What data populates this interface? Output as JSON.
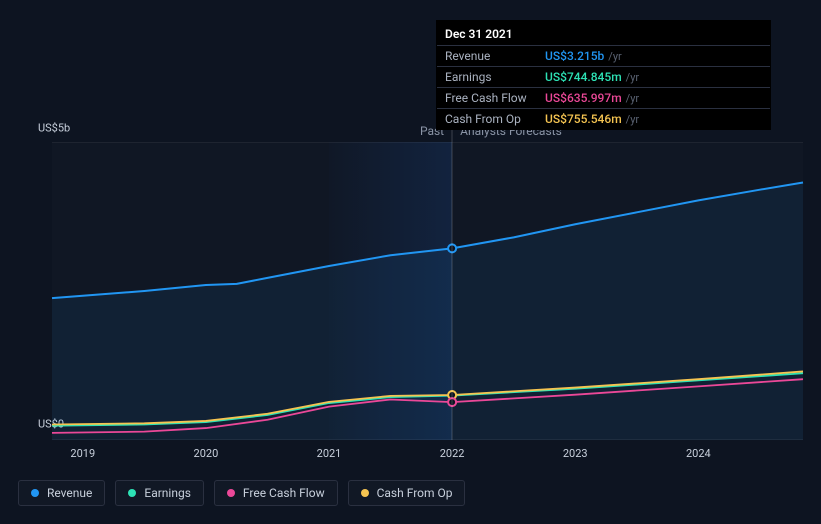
{
  "chart": {
    "type": "line",
    "background_color": "#0d1421",
    "grid_color": "rgba(255,255,255,0.06)",
    "text_color": "#c8d0dc",
    "muted_text_color": "#8a94a6",
    "plot_bg": "rgba(255,255,255,0.015)",
    "y_axis": {
      "min": 0,
      "max": 5,
      "unit": "US$b",
      "ticks": [
        0,
        5
      ],
      "tick_labels": [
        "US$0",
        "US$5b"
      ]
    },
    "x_axis": {
      "min": 2018.75,
      "max": 2024.85,
      "ticks": [
        2019,
        2020,
        2021,
        2022,
        2023,
        2024
      ]
    },
    "divider_x": 2022,
    "past_label": "Past",
    "forecast_label": "Analysts Forecasts",
    "highlight_band": {
      "from": 2021,
      "to": 2022
    },
    "marker_x": 2022,
    "series": [
      {
        "name": "Revenue",
        "color": "#2196f3",
        "area_fill": "rgba(33,150,243,0.08)",
        "stroke_width": 2,
        "points": [
          {
            "x": 2018.75,
            "y": 2.38
          },
          {
            "x": 2019.0,
            "y": 2.42
          },
          {
            "x": 2019.5,
            "y": 2.5
          },
          {
            "x": 2020.0,
            "y": 2.6
          },
          {
            "x": 2020.25,
            "y": 2.62
          },
          {
            "x": 2020.5,
            "y": 2.72
          },
          {
            "x": 2021.0,
            "y": 2.92
          },
          {
            "x": 2021.5,
            "y": 3.1
          },
          {
            "x": 2022.0,
            "y": 3.215
          },
          {
            "x": 2022.5,
            "y": 3.4
          },
          {
            "x": 2023.0,
            "y": 3.62
          },
          {
            "x": 2023.5,
            "y": 3.82
          },
          {
            "x": 2024.0,
            "y": 4.02
          },
          {
            "x": 2024.5,
            "y": 4.2
          },
          {
            "x": 2024.85,
            "y": 4.32
          }
        ]
      },
      {
        "name": "Earnings",
        "color": "#2de2b5",
        "stroke_width": 1.8,
        "points": [
          {
            "x": 2018.75,
            "y": 0.24
          },
          {
            "x": 2019.5,
            "y": 0.26
          },
          {
            "x": 2020.0,
            "y": 0.3
          },
          {
            "x": 2020.5,
            "y": 0.42
          },
          {
            "x": 2021.0,
            "y": 0.62
          },
          {
            "x": 2021.5,
            "y": 0.72
          },
          {
            "x": 2022.0,
            "y": 0.745
          },
          {
            "x": 2023.0,
            "y": 0.86
          },
          {
            "x": 2024.0,
            "y": 1.0
          },
          {
            "x": 2024.85,
            "y": 1.12
          }
        ]
      },
      {
        "name": "Free Cash Flow",
        "color": "#eb4898",
        "stroke_width": 1.8,
        "points": [
          {
            "x": 2018.75,
            "y": 0.12
          },
          {
            "x": 2019.5,
            "y": 0.14
          },
          {
            "x": 2020.0,
            "y": 0.2
          },
          {
            "x": 2020.5,
            "y": 0.34
          },
          {
            "x": 2021.0,
            "y": 0.56
          },
          {
            "x": 2021.5,
            "y": 0.68
          },
          {
            "x": 2022.0,
            "y": 0.636
          },
          {
            "x": 2023.0,
            "y": 0.76
          },
          {
            "x": 2024.0,
            "y": 0.9
          },
          {
            "x": 2024.85,
            "y": 1.02
          }
        ]
      },
      {
        "name": "Cash From Op",
        "color": "#f5c451",
        "stroke_width": 1.8,
        "points": [
          {
            "x": 2018.75,
            "y": 0.26
          },
          {
            "x": 2019.5,
            "y": 0.28
          },
          {
            "x": 2020.0,
            "y": 0.32
          },
          {
            "x": 2020.5,
            "y": 0.44
          },
          {
            "x": 2021.0,
            "y": 0.64
          },
          {
            "x": 2021.5,
            "y": 0.74
          },
          {
            "x": 2022.0,
            "y": 0.755
          },
          {
            "x": 2023.0,
            "y": 0.88
          },
          {
            "x": 2024.0,
            "y": 1.02
          },
          {
            "x": 2024.85,
            "y": 1.15
          }
        ]
      }
    ],
    "markers": [
      {
        "series": "Revenue",
        "x": 2022,
        "y": 3.215,
        "color": "#2196f3"
      },
      {
        "series": "Cash From Op",
        "x": 2022,
        "y": 0.755,
        "color": "#f5c451"
      },
      {
        "series": "Free Cash Flow",
        "x": 2022,
        "y": 0.636,
        "color": "#eb4898"
      }
    ]
  },
  "tooltip": {
    "title": "Dec 31 2021",
    "rows": [
      {
        "label": "Revenue",
        "value": "US$3.215b",
        "unit": "/yr",
        "color": "#2196f3"
      },
      {
        "label": "Earnings",
        "value": "US$744.845m",
        "unit": "/yr",
        "color": "#2de2b5"
      },
      {
        "label": "Free Cash Flow",
        "value": "US$635.997m",
        "unit": "/yr",
        "color": "#eb4898"
      },
      {
        "label": "Cash From Op",
        "value": "US$755.546m",
        "unit": "/yr",
        "color": "#f5c451"
      }
    ]
  },
  "legend": {
    "items": [
      {
        "label": "Revenue",
        "color": "#2196f3"
      },
      {
        "label": "Earnings",
        "color": "#2de2b5"
      },
      {
        "label": "Free Cash Flow",
        "color": "#eb4898"
      },
      {
        "label": "Cash From Op",
        "color": "#f5c451"
      }
    ]
  }
}
